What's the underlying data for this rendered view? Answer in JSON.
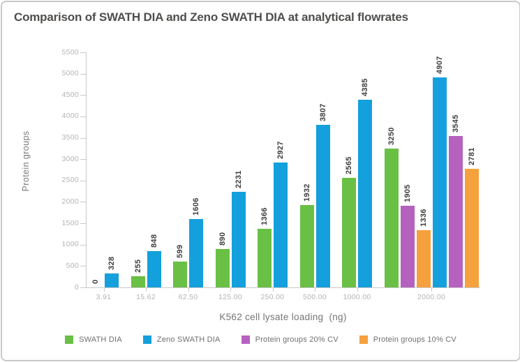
{
  "title": "Comparison of SWATH DIA and Zeno SWATH DIA at analytical flowrates",
  "colors": {
    "green": "#6abf45",
    "blue": "#14a0dc",
    "purple": "#b561be",
    "orange": "#f5a13d",
    "axis_line": "#c9c9c9",
    "tick_label": "#b3b3b3",
    "bar_label": "#3d3d3d",
    "title_text": "#504e4c",
    "muted_text": "#757575"
  },
  "chart_data": {
    "type": "bar",
    "title": "Comparison of SWATH DIA and Zeno SWATH DIA at analytical flowrates",
    "xlabel": "K562 cell lysate loading  (ng)",
    "ylabel": "Protein groups",
    "ylim": [
      0,
      5500
    ],
    "ytick_step": 500,
    "grid": false,
    "legend_position": "bottom",
    "bar_label_rotation": 90,
    "legend": [
      "SWATH DIA",
      "Zeno SWATH DIA",
      "Protein groups 20% CV",
      "Protein groups 10% CV"
    ],
    "series_colors": {
      "SWATH DIA": "#6abf45",
      "Zeno SWATH DIA": "#14a0dc",
      "Protein groups 20% CV": "#b561be",
      "Protein groups 10% CV": "#f5a13d"
    },
    "categories": [
      "3.91",
      "15.62",
      "62.50",
      "125.00",
      "250.00",
      "500.00",
      "1000.00",
      "2000.00"
    ],
    "groups": [
      {
        "category": "3.91",
        "bars": [
          {
            "series": "SWATH DIA",
            "value": 0
          },
          {
            "series": "Zeno SWATH DIA",
            "value": 328
          }
        ]
      },
      {
        "category": "15.62",
        "bars": [
          {
            "series": "SWATH DIA",
            "value": 255
          },
          {
            "series": "Zeno SWATH DIA",
            "value": 848
          }
        ]
      },
      {
        "category": "62.50",
        "bars": [
          {
            "series": "SWATH DIA",
            "value": 599
          },
          {
            "series": "Zeno SWATH DIA",
            "value": 1606
          }
        ]
      },
      {
        "category": "125.00",
        "bars": [
          {
            "series": "SWATH DIA",
            "value": 890
          },
          {
            "series": "Zeno SWATH DIA",
            "value": 2231
          }
        ]
      },
      {
        "category": "250.00",
        "bars": [
          {
            "series": "SWATH DIA",
            "value": 1366
          },
          {
            "series": "Zeno SWATH DIA",
            "value": 2927
          }
        ]
      },
      {
        "category": "500.00",
        "bars": [
          {
            "series": "SWATH DIA",
            "value": 1932
          },
          {
            "series": "Zeno SWATH DIA",
            "value": 3807
          }
        ]
      },
      {
        "category": "1000.00",
        "bars": [
          {
            "series": "SWATH DIA",
            "value": 2565
          },
          {
            "series": "Zeno SWATH DIA",
            "value": 4385
          }
        ]
      },
      {
        "category": "2000.00",
        "bars": [
          {
            "series": "SWATH DIA",
            "value": 3250
          },
          {
            "series": "Protein groups 20% CV",
            "value": 1905
          },
          {
            "series": "Protein groups 10% CV",
            "value": 1336
          },
          {
            "series": "Zeno SWATH DIA",
            "value": 4907
          },
          {
            "series": "Protein groups 20% CV",
            "value": 3545
          },
          {
            "series": "Protein groups 10% CV",
            "value": 2781
          }
        ]
      }
    ]
  }
}
